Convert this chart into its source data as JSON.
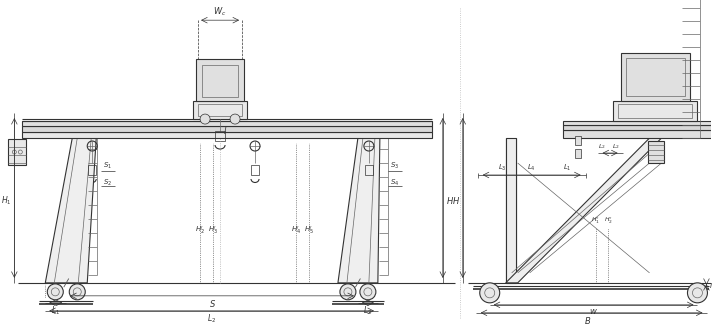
{
  "bg_color": "#ffffff",
  "line_color": "#666666",
  "line_color_dark": "#333333",
  "thin_lw": 0.5,
  "med_lw": 0.8,
  "thick_lw": 1.2,
  "figsize": [
    7.12,
    3.33
  ],
  "dpi": 100
}
